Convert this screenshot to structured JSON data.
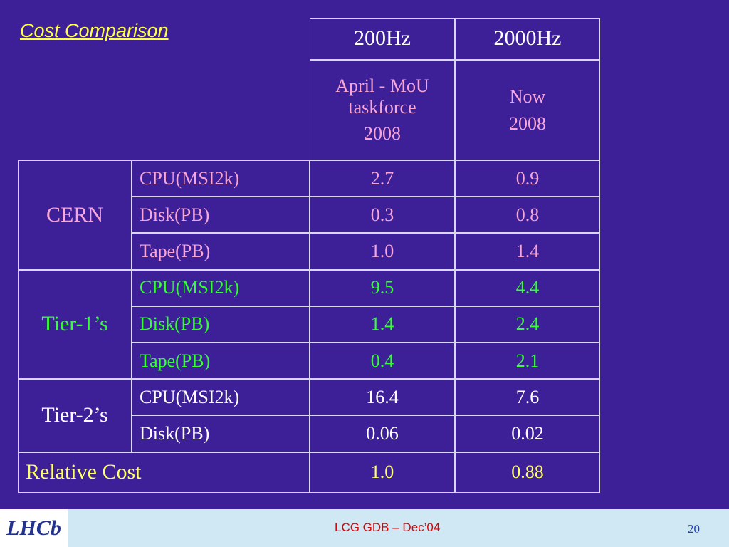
{
  "title": "Cost Comparison",
  "table": {
    "columns": [
      "200Hz",
      "2000Hz"
    ],
    "subheaders": [
      [
        "April - MoU taskforce",
        "2008"
      ],
      [
        "Now",
        "2008"
      ]
    ],
    "groups": [
      {
        "name": "CERN",
        "rows": [
          [
            "CPU(MSI2k)",
            "2.7",
            "0.9"
          ],
          [
            "Disk(PB)",
            "0.3",
            "0.8"
          ],
          [
            "Tape(PB)",
            "1.0",
            "1.4"
          ]
        ]
      },
      {
        "name": "Tier-1’s",
        "rows": [
          [
            "CPU(MSI2k)",
            "9.5",
            "4.4"
          ],
          [
            "Disk(PB)",
            "1.4",
            "2.4"
          ],
          [
            "Tape(PB)",
            "0.4",
            "2.1"
          ]
        ]
      },
      {
        "name": "Tier-2’s",
        "rows": [
          [
            "CPU(MSI2k)",
            "16.4",
            "7.6"
          ],
          [
            "Disk(PB)",
            "0.06",
            "0.02"
          ]
        ]
      }
    ],
    "relative_cost": {
      "label": "Relative Cost",
      "values": [
        "1.0",
        "0.88"
      ]
    }
  },
  "footer": {
    "logo": "LHCb",
    "text": "LCG GDB – Dec’04",
    "page": "20"
  }
}
